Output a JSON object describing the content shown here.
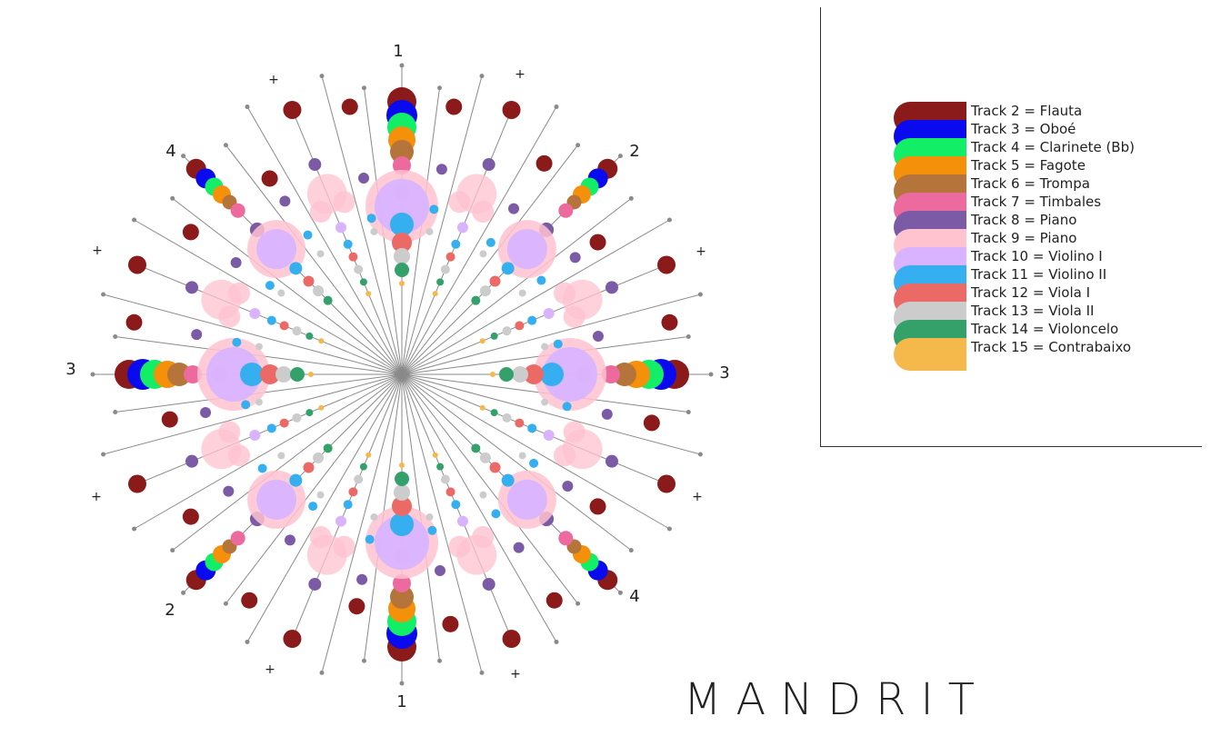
{
  "title": "MANDRIT",
  "axis_labels": {
    "top": "1",
    "bottom": "1",
    "left": "3",
    "right": "3",
    "upper_right": "2",
    "lower_left": "2",
    "upper_left": "4",
    "lower_right": "4",
    "plus": "+"
  },
  "legend": [
    {
      "label": "Track 2 = Flauta",
      "color": "#8b1a1a"
    },
    {
      "label": "Track 3 = Oboé",
      "color": "#0a0aee"
    },
    {
      "label": "Track 4 = Clarinete (Bb)",
      "color": "#12ee66"
    },
    {
      "label": "Track 5 = Fagote",
      "color": "#f5900a"
    },
    {
      "label": "Track 6 = Trompa",
      "color": "#b5743a"
    },
    {
      "label": "Track 7 = Timbales",
      "color": "#ec6a9e"
    },
    {
      "label": "Track 8 = Piano",
      "color": "#7b5aa6"
    },
    {
      "label": "Track 9 = Piano",
      "color": "#ffc2cf"
    },
    {
      "label": "Track 10 = Violino I",
      "color": "#d9b3ff"
    },
    {
      "label": "Track 11 = Violino II",
      "color": "#35aff0"
    },
    {
      "label": "Track 12 = Viola I",
      "color": "#ec6a66"
    },
    {
      "label": "Track 13 = Viola II",
      "color": "#cccccc"
    },
    {
      "label": "Track 14 = Violoncelo",
      "color": "#34a06a"
    },
    {
      "label": "Track 15 = Contrabaixo",
      "color": "#f5b84a"
    }
  ]
}
